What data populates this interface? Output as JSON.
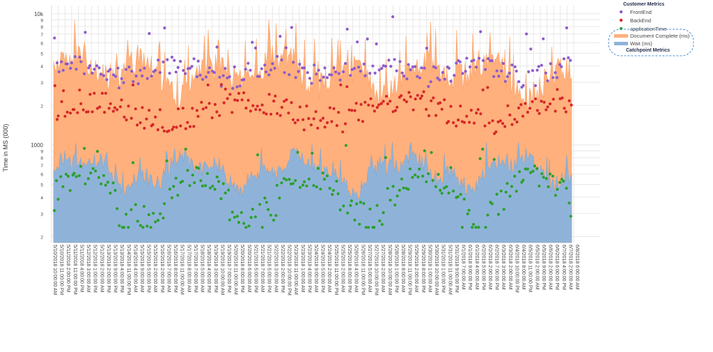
{
  "chart_data": {
    "type": "area",
    "xlabel": "",
    "ylabel": "Time in MS (000)",
    "y_scale": "log",
    "ylim": [
      1800,
      11000
    ],
    "y_major_ticks": [
      {
        "value": 1000,
        "label": "1000"
      },
      {
        "value": 10000,
        "label": "10k"
      }
    ],
    "y_minor_ticks": [
      {
        "value": 2000,
        "label": "2"
      },
      {
        "value": 3000,
        "label": "3"
      },
      {
        "value": 4000,
        "label": "4"
      },
      {
        "value": 5000,
        "label": "5"
      },
      {
        "value": 6000,
        "label": "6"
      },
      {
        "value": 7000,
        "label": "7"
      },
      {
        "value": 8000,
        "label": "8"
      },
      {
        "value": 9000,
        "label": "9"
      },
      {
        "value": 200,
        "label": "2"
      },
      {
        "value": 300,
        "label": "3"
      },
      {
        "value": 400,
        "label": "4"
      },
      {
        "value": 500,
        "label": "5"
      },
      {
        "value": 600,
        "label": "6"
      },
      {
        "value": 700,
        "label": "7"
      },
      {
        "value": 800,
        "label": "8"
      },
      {
        "value": 900,
        "label": "9"
      }
    ],
    "x_ticks": [
      "5/10/2018 10:00:00 AM",
      "5/10/2018 11:00:00 PM",
      "5/11/2018 2:00:00 PM",
      "5/11/2018 11:00:00 PM",
      "5/11/2018 4:00:00 PM",
      "5/12/2018 3:00:00 AM",
      "5/12/2018 1:00:00 PM",
      "5/12/2018 2:00:00 AM",
      "5/13/2018 2:00:00 PM",
      "5/13/2018 9:00:00 PM",
      "5/13/2018 4:00:00 PM",
      "5/14/2018 11:00:00 PM",
      "5/14/2018 4:00:00 AM",
      "5/15/2018 9:00:00 AM",
      "5/15/2018 5:00:00 PM",
      "5/15/2018 2:00:00 AM",
      "5/16/2018 2:00:00 PM",
      "5/16/2018 7:00:00 AM",
      "5/16/2018 8:00:00 PM",
      "5/17/2018 11:00:00 AM",
      "5/17/2018 8:00:00 AM",
      "5/17/2018 7:00:00 PM",
      "5/18/2018 5:00:00 AM",
      "5/18/2018 4:00:00 PM",
      "5/19/2018 3:00:00 PM",
      "5/19/2018 10:00:00 AM",
      "5/19/2018 7:00:00 PM",
      "5/20/2018 11:00:00 AM",
      "5/20/2018 8:00:00 PM",
      "5/20/2018 6:00:00 AM",
      "5/21/2018 5:00:00 PM",
      "5/21/2018 7:00:00 AM",
      "5/21/2018 5:00:00 PM",
      "5/22/2018 3:00:00 AM",
      "5/22/2018 2:00:00 PM",
      "5/22/2018 10:00:00 PM",
      "5/23/2018 11:00:00 AM",
      "5/23/2018 1:00:00 AM",
      "5/23/2018 4:00:00 PM",
      "5/24/2018 9:00:00 AM",
      "5/24/2018 5:00:00 PM",
      "5/24/2018 2:00:00 AM",
      "5/25/2018 11:00:00 PM",
      "5/25/2018 2:00:00 AM",
      "5/25/2018 8:00:00 PM",
      "5/26/2018 4:00:00 AM",
      "5/26/2018 11:00:00 PM",
      "5/27/2018 5:00:00 AM",
      "5/27/2018 10:00:00 PM",
      "5/27/2018 2:00:00 AM",
      "5/28/2018 10:00:00 AM",
      "5/28/2018 1:00:00 PM",
      "5/28/2018 8:00:00 AM",
      "5/29/2018 11:00:00 PM",
      "5/29/2018 2:00:00 AM",
      "5/29/2018 8:00:00 PM",
      "5/30/2018 1:00:00 AM",
      "5/30/2018 10:00:00 AM",
      "5/31/2018 1:00:00 PM",
      "5/31/2018 11:00:00 AM",
      "5/31/2018 9:00:00 PM",
      "6/1/2018 7:00:00 AM",
      "6/1/2018 9:00:00 PM",
      "6/1/2018 4:00:00 AM",
      "6/2/2018 5:00:00 PM",
      "6/2/2018 2:00:00 AM",
      "6/2/2018 7:00:00 PM",
      "6/3/2018 3:00:00 AM",
      "6/3/2018 2:00:00 AM",
      "6/4/2018 10:00:00 PM",
      "6/4/2018 8:00:00 AM",
      "6/5/2018 11:00:00 PM",
      "6/5/2018 2:00:00 AM",
      "6/5/2018 9:00:00 PM",
      "6/6/2018 2:00:00 AM",
      "6/6/2018 6:00:00 PM",
      "6/7/2018 4:00:00 PM",
      "6/7/2018 2:00:00 AM",
      "6/8/2018 6:00:00 AM"
    ],
    "legend": {
      "placement": "top-right",
      "group_title": "Customer Metrics",
      "items": [
        {
          "name": "FrontEnd",
          "kind": "marker",
          "color": "#8e5bc9"
        },
        {
          "name": "BackEnd",
          "kind": "marker",
          "color": "#d62728"
        },
        {
          "name": "applicationTime",
          "kind": "marker",
          "color": "#2ca02c"
        },
        {
          "name": "Document Complete (ms)",
          "kind": "area",
          "color": "#ffb07c"
        },
        {
          "name": "Wait (ms)",
          "kind": "area",
          "color": "#8fb3d8"
        }
      ],
      "footer_title": "Catchpoint Metrics"
    },
    "series": [
      {
        "name": "Document Complete (ms)",
        "type": "area",
        "color": "#ffb07c",
        "typical_range": [
          2800,
          9000
        ]
      },
      {
        "name": "Wait (ms)",
        "type": "area",
        "color": "#8fb3d8",
        "typical_range": [
          500,
          1000
        ]
      },
      {
        "name": "FrontEnd",
        "type": "scatter",
        "color": "#8e5bc9",
        "typical_range": [
          2800,
          9500
        ]
      },
      {
        "name": "BackEnd",
        "type": "scatter",
        "color": "#d62728",
        "typical_range": [
          1200,
          2800
        ]
      },
      {
        "name": "applicationTime",
        "type": "scatter",
        "color": "#2ca02c",
        "typical_range": [
          230,
          1000
        ]
      }
    ],
    "grid": true
  }
}
